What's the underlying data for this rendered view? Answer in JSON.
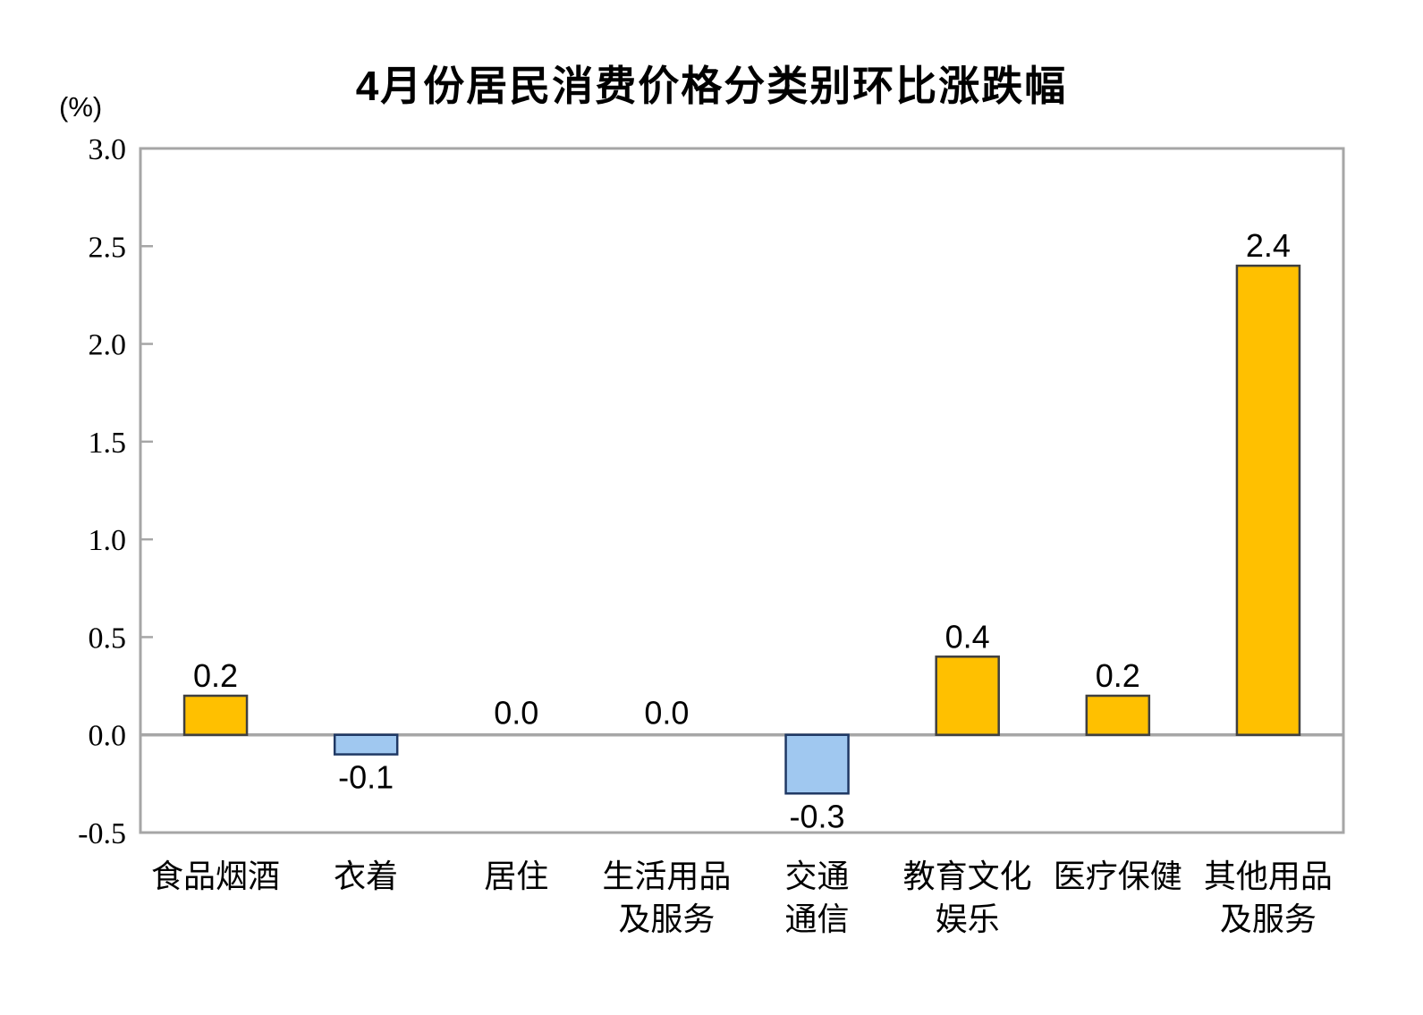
{
  "title": "4月份居民消费价格分类别环比涨跌幅",
  "unit_label": "(%)",
  "chart_data": {
    "type": "bar",
    "title": "4月份居民消费价格分类别环比涨跌幅",
    "xlabel": "",
    "ylabel": "(%)",
    "categories": [
      "食品烟酒",
      "衣着",
      "居住",
      "生活用品及服务",
      "交通通信",
      "教育文化娱乐",
      "医疗保健",
      "其他用品及服务"
    ],
    "categories_wrapped": [
      [
        "食品烟酒"
      ],
      [
        "衣着"
      ],
      [
        "居住"
      ],
      [
        "生活用品",
        "及服务"
      ],
      [
        "交通",
        "通信"
      ],
      [
        "教育文化",
        "娱乐"
      ],
      [
        "医疗保健"
      ],
      [
        "其他用品",
        "及服务"
      ]
    ],
    "values": [
      0.2,
      -0.1,
      0.0,
      0.0,
      -0.3,
      0.4,
      0.2,
      2.4
    ],
    "value_labels": [
      "0.2",
      "-0.1",
      "0.0",
      "0.0",
      "-0.3",
      "0.4",
      "0.2",
      "2.4"
    ],
    "ylim": [
      -0.5,
      3.0
    ],
    "yticks": [
      3.0,
      2.5,
      2.0,
      1.5,
      1.0,
      0.5,
      0.0,
      -0.5
    ],
    "ytick_labels": [
      "3.0",
      "2.5",
      "2.0",
      "1.5",
      "1.0",
      "0.5",
      "0.0",
      "-0.5"
    ],
    "grid": false,
    "legend": null,
    "colors": {
      "positive_fill": "#FFC000",
      "positive_border": "#3F3F3F",
      "negative_fill": "#A0C8F0",
      "negative_border": "#1F3864",
      "axis": "#A6A6A6",
      "text": "#000000",
      "background": "#FFFFFF"
    }
  }
}
